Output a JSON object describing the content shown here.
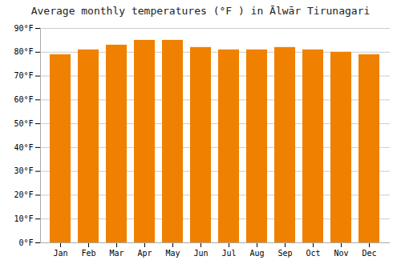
{
  "chart_data": {
    "type": "bar",
    "title": "Average monthly temperatures (°F ) in Ālwār Tirunagari",
    "categories": [
      "Jan",
      "Feb",
      "Mar",
      "Apr",
      "May",
      "Jun",
      "Jul",
      "Aug",
      "Sep",
      "Oct",
      "Nov",
      "Dec"
    ],
    "values": [
      79,
      81,
      83,
      85,
      85,
      82,
      81,
      81,
      82,
      81,
      80,
      79
    ],
    "color": "#F08000",
    "ylim": [
      0,
      90
    ],
    "yticks": [
      {
        "value": 0,
        "label": "0°F"
      },
      {
        "value": 10,
        "label": "10°F"
      },
      {
        "value": 20,
        "label": "20°F"
      },
      {
        "value": 30,
        "label": "30°F"
      },
      {
        "value": 40,
        "label": "40°F"
      },
      {
        "value": 50,
        "label": "50°F"
      },
      {
        "value": 60,
        "label": "60°F"
      },
      {
        "value": 70,
        "label": "70°F"
      },
      {
        "value": 80,
        "label": "80°F"
      },
      {
        "value": 90,
        "label": "90°F"
      }
    ],
    "grid": true
  }
}
